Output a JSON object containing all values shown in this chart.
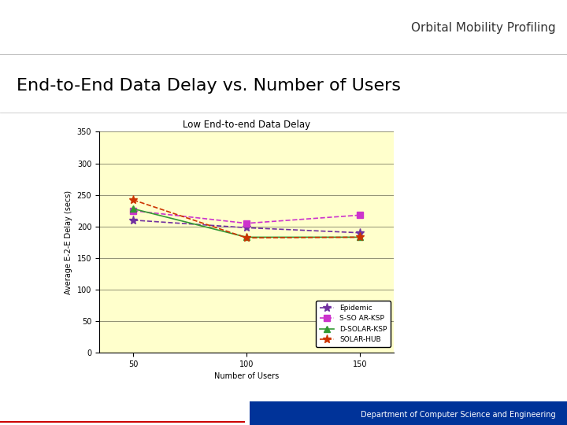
{
  "chart_title": "Low End-to-end Data Delay",
  "xlabel": "Number of Users",
  "ylabel": "Average E-2-E Delay (secs)",
  "x_values": [
    50,
    100,
    150
  ],
  "epidemic": [
    210,
    198,
    190
  ],
  "s_solar_ksp": [
    225,
    205,
    218
  ],
  "d_solar_ksp": [
    228,
    183,
    183
  ],
  "solar_hub": [
    242,
    182,
    183
  ],
  "epidemic_color": "#7030a0",
  "s_solar_ksp_color": "#cc33cc",
  "d_solar_ksp_color": "#339933",
  "solar_hub_color": "#cc3300",
  "bg_color": "#ffffcc",
  "ylim": [
    0,
    350
  ],
  "yticks": [
    0,
    50,
    100,
    150,
    200,
    250,
    300,
    350
  ],
  "xticks": [
    50,
    100,
    150
  ],
  "legend_labels": [
    "Epidemic",
    "S-SO AR-KSP",
    "D-SOLAR-KSP",
    "SOLAR-HUB"
  ],
  "page_title": "Orbital Mobility Profiling",
  "slide_title": "End-to-End Data Delay vs. Number of Users",
  "header_bg": "#ffffff",
  "footer_bg": "#003399",
  "footer_text": "Department of Computer Science and Engineering"
}
